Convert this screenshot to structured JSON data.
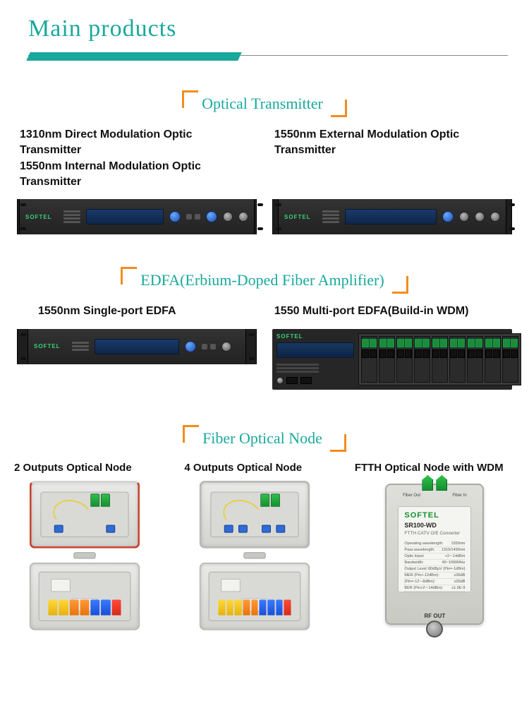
{
  "header": {
    "title": "Main products"
  },
  "colors": {
    "teal": "#1aa89d",
    "orange": "#f28c1e",
    "text": "#111111",
    "brand_green": "#149030"
  },
  "sections": {
    "optical_transmitter": {
      "heading": "Optical Transmitter",
      "left": {
        "line1": "1310nm Direct Modulation Optic Transmitter",
        "line2": "1550nm Internal Modulation Optic Transmitter"
      },
      "right": {
        "line1": "1550nm External Modulation Optic Transmitter"
      },
      "device_brand": "SOFTEL"
    },
    "edfa": {
      "heading": "EDFA(Erbium-Doped Fiber Amplifier)",
      "left_label": "1550nm Single-port EDFA",
      "right_label": "1550 Multi-port EDFA(Build-in WDM)",
      "device_brand": "SOFTEL"
    },
    "node": {
      "heading": "Fiber Optical Node",
      "col1": "2 Outputs Optical Node",
      "col2": "4 Outputs Optical Node",
      "col3": "FTTH Optical  Node with WDM",
      "ftth": {
        "fiber_out": "Fiber Out",
        "fiber_in": "Fiber In",
        "brand": "SOFTEL",
        "model": "SR100-WD",
        "subtitle": "FTTH CATV O/E Converter",
        "rows": [
          [
            "Operating wavelength:",
            "1550nm"
          ],
          [
            "Pass wavelength:",
            "1310/1490nm"
          ],
          [
            "Optic Input:",
            "+2~-14dBm"
          ],
          [
            "Bandwidth:",
            "45~1000MHz"
          ],
          [
            "Output Level:",
            "80dBµV (Pin=-1dBm)"
          ],
          [
            "MER (Pin>-12dBm):",
            "≥36dB"
          ],
          [
            "(Pin=-12~-8dBm):",
            "≥35dB"
          ],
          [
            "BER (Pin>2~-14dBm):",
            "≤1.0E-9"
          ]
        ],
        "rf_out": "RF OUT"
      }
    }
  }
}
